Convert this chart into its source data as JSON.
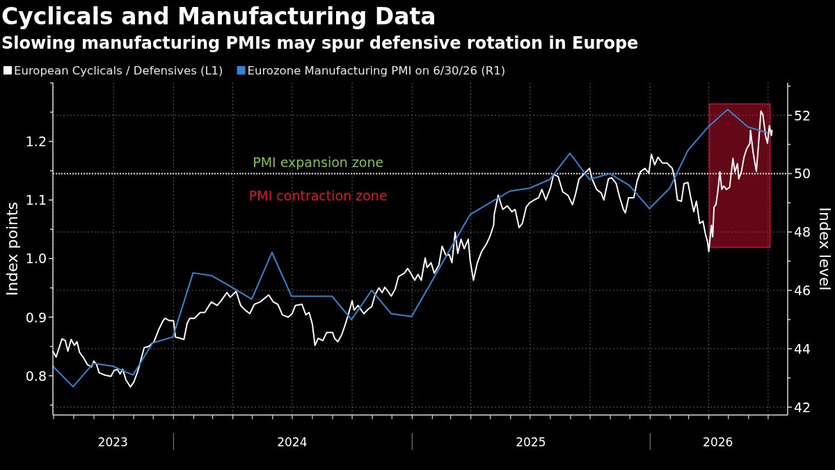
{
  "chart_data": {
    "type": "line",
    "title": "Cyclicals and Manufacturing Data",
    "subtitle": "Slowing manufacturing PMIs may spur defensive rotation in Europe",
    "ylabel": "Index points",
    "y2label": "Index level",
    "annotations": [
      "PMI expansion zone",
      "PMI contraction zone"
    ],
    "xlim": [
      "2023-06-30",
      "2026-07-31"
    ],
    "xticks": [
      {
        "value": "2023-07-01",
        "label": null
      },
      {
        "value": "2023-08-01",
        "label": null
      },
      {
        "value": "2023-09-01",
        "label": null
      },
      {
        "value": "2023-10-01",
        "label": null
      },
      {
        "value": "2023-11-01",
        "label": null
      },
      {
        "value": "2023-12-01",
        "label": null
      },
      {
        "value": "2024-01-01",
        "label": null
      },
      {
        "value": "2024-02-01",
        "label": null
      },
      {
        "value": "2024-03-01",
        "label": null
      },
      {
        "value": "2024-04-01",
        "label": null
      },
      {
        "value": "2024-05-01",
        "label": null
      },
      {
        "value": "2024-06-01",
        "label": null
      },
      {
        "value": "2024-07-01",
        "label": null
      },
      {
        "value": "2024-08-01",
        "label": null
      },
      {
        "value": "2024-09-01",
        "label": null
      },
      {
        "value": "2024-10-01",
        "label": null
      },
      {
        "value": "2024-11-01",
        "label": null
      },
      {
        "value": "2024-12-01",
        "label": null
      },
      {
        "value": "2025-01-01",
        "label": null
      },
      {
        "value": "2025-02-01",
        "label": null
      },
      {
        "value": "2025-03-01",
        "label": null
      },
      {
        "value": "2025-04-01",
        "label": null
      },
      {
        "value": "2025-05-01",
        "label": null
      },
      {
        "value": "2025-06-01",
        "label": null
      },
      {
        "value": "2025-07-01",
        "label": null
      },
      {
        "value": "2025-08-01",
        "label": null
      },
      {
        "value": "2025-09-01",
        "label": null
      },
      {
        "value": "2025-10-01",
        "label": null
      },
      {
        "value": "2025-11-01",
        "label": null
      },
      {
        "value": "2025-12-01",
        "label": null
      },
      {
        "value": "2026-01-01",
        "label": null
      },
      {
        "value": "2026-02-01",
        "label": null
      },
      {
        "value": "2026-03-01",
        "label": null
      },
      {
        "value": "2026-04-01",
        "label": null
      },
      {
        "value": "2026-05-01",
        "label": null
      },
      {
        "value": "2026-06-01",
        "label": null
      },
      {
        "value": "2026-07-01",
        "label": null
      },
      {
        "value": "2023-09-30",
        "label": "2023"
      },
      {
        "value": "2024-07-01",
        "label": "2024"
      },
      {
        "value": "2025-07-02",
        "label": "2025"
      },
      {
        "value": "2026-04-15",
        "label": "2026"
      }
    ],
    "ylim": [
      0.733,
      1.3
    ],
    "yticks": [
      {
        "value": 0.75,
        "label": null
      },
      0.8,
      {
        "value": 0.85,
        "label": null
      },
      0.9,
      {
        "value": 0.95,
        "label": null
      },
      {
        "value": 1,
        "label": "1.0"
      },
      {
        "value": 1.05,
        "label": null
      },
      1.1,
      {
        "value": 1.15,
        "label": null
      },
      1.2,
      {
        "value": 1.25,
        "label": null
      },
      {
        "value": 1.3,
        "label": null
      }
    ],
    "y2lim": [
      41.73,
      53.11
    ],
    "y2ticks": [
      42,
      {
        "value": 43,
        "label": null
      },
      44,
      {
        "value": 45,
        "label": null
      },
      46,
      {
        "value": 47,
        "label": null
      },
      48,
      {
        "value": 49,
        "label": null
      },
      50,
      {
        "value": 51,
        "label": null
      },
      52,
      {
        "value": 53,
        "label": null
      }
    ],
    "grid": true,
    "legend": "top left",
    "ref_lines": [
      {
        "axis": "y2",
        "value": 50,
        "color": "#c8c8c8",
        "line_style": "dotted"
      }
    ],
    "bands": [
      {
        "axis": "x",
        "from": "2026-04-02",
        "to": "2026-07-04",
        "color": "#c8102e"
      }
    ],
    "series": [
      {
        "name": "European Cyclicals / Defensives (L1)",
        "color": "#ffffff",
        "x": [
          "2023-06-30",
          "2023-07-05",
          "2023-07-09",
          "2023-07-14",
          "2023-07-19",
          "2023-07-23",
          "2023-07-28",
          "2023-08-02",
          "2023-08-06",
          "2023-08-10",
          "2023-08-17",
          "2023-08-22",
          "2023-08-28",
          "2023-09-01",
          "2023-09-05",
          "2023-09-09",
          "2023-09-18",
          "2023-09-27",
          "2023-10-02",
          "2023-10-07",
          "2023-10-11",
          "2023-10-15",
          "2023-10-20",
          "2023-10-27",
          "2023-11-01",
          "2023-11-07",
          "2023-11-12",
          "2023-11-17",
          "2023-11-24",
          "2023-12-02",
          "2023-12-09",
          "2023-12-16",
          "2023-12-19",
          "2023-12-26",
          "2024-01-01",
          "2024-01-04",
          "2024-01-11",
          "2024-01-17",
          "2024-01-22",
          "2024-01-26",
          "2024-02-02",
          "2024-02-11",
          "2024-02-18",
          "2024-02-28",
          "2024-03-08",
          "2024-03-14",
          "2024-03-23",
          "2024-03-28",
          "2024-04-06",
          "2024-04-13",
          "2024-04-20",
          "2024-04-27",
          "2024-05-04",
          "2024-05-13",
          "2024-05-26",
          "2024-06-02",
          "2024-06-09",
          "2024-06-16",
          "2024-06-25",
          "2024-07-01",
          "2024-07-06",
          "2024-07-16",
          "2024-07-22",
          "2024-07-27",
          "2024-08-01",
          "2024-08-05",
          "2024-08-10",
          "2024-08-17",
          "2024-08-23",
          "2024-09-01",
          "2024-09-04",
          "2024-09-09",
          "2024-09-15",
          "2024-09-20",
          "2024-09-25",
          "2024-10-01",
          "2024-10-04",
          "2024-10-10",
          "2024-10-19",
          "2024-10-26",
          "2024-10-31",
          "2024-11-05",
          "2024-11-11",
          "2024-11-16",
          "2024-11-20",
          "2024-11-25",
          "2024-11-30",
          "2024-12-06",
          "2024-12-11",
          "2024-12-20",
          "2024-12-25",
          "2024-12-30",
          "2025-01-05",
          "2025-01-10",
          "2025-01-15",
          "2025-01-21",
          "2025-01-24",
          "2025-01-30",
          "2025-02-04",
          "2025-02-11",
          "2025-02-16",
          "2025-02-22",
          "2025-02-27",
          "2025-03-03",
          "2025-03-08",
          "2025-03-12",
          "2025-03-17",
          "2025-03-22",
          "2025-03-28",
          "2025-03-31",
          "2025-04-05",
          "2025-04-11",
          "2025-04-18",
          "2025-04-25",
          "2025-04-30",
          "2025-05-06",
          "2025-05-07",
          "2025-05-13",
          "2025-05-20",
          "2025-05-27",
          "2025-06-03",
          "2025-06-08",
          "2025-06-14",
          "2025-06-19",
          "2025-06-25",
          "2025-06-30",
          "2025-07-07",
          "2025-07-14",
          "2025-07-19",
          "2025-07-25",
          "2025-08-01",
          "2025-08-06",
          "2025-08-13",
          "2025-08-20",
          "2025-08-28",
          "2025-09-04",
          "2025-09-09",
          "2025-09-14",
          "2025-09-23",
          "2025-09-30",
          "2025-10-04",
          "2025-10-11",
          "2025-10-18",
          "2025-10-22",
          "2025-10-29",
          "2025-11-03",
          "2025-11-10",
          "2025-11-15",
          "2025-11-21",
          "2025-11-24",
          "2025-11-29",
          "2025-12-07",
          "2025-12-12",
          "2025-12-17",
          "2025-12-24",
          "2025-12-30",
          "2026-01-03",
          "2026-01-08",
          "2026-01-13",
          "2026-01-20",
          "2026-01-27",
          "2026-02-04",
          "2026-02-08",
          "2026-02-12",
          "2026-02-18",
          "2026-02-22",
          "2026-02-28",
          "2026-03-04",
          "2026-03-09",
          "2026-03-13",
          "2026-03-18",
          "2026-03-23",
          "2026-03-27",
          "2026-03-30",
          "2026-04-01",
          "2026-04-05",
          "2026-04-07",
          "2026-04-09",
          "2026-04-12",
          "2026-04-15",
          "2026-04-18",
          "2026-04-21",
          "2026-04-24",
          "2026-04-28",
          "2026-05-03",
          "2026-05-08",
          "2026-05-11",
          "2026-05-15",
          "2026-05-17",
          "2026-05-21",
          "2026-05-25",
          "2026-05-29",
          "2026-06-03",
          "2026-06-04",
          "2026-06-08",
          "2026-06-13",
          "2026-06-16",
          "2026-06-20",
          "2026-06-23",
          "2026-06-27",
          "2026-06-30",
          "2026-07-03",
          "2026-07-06",
          "2026-07-07"
        ],
        "values": [
          0.842,
          0.832,
          0.846,
          0.863,
          0.86,
          0.842,
          0.862,
          0.852,
          0.858,
          0.84,
          0.829,
          0.819,
          0.815,
          0.825,
          0.819,
          0.805,
          0.801,
          0.799,
          0.809,
          0.811,
          0.803,
          0.811,
          0.793,
          0.781,
          0.789,
          0.807,
          0.827,
          0.848,
          0.85,
          0.858,
          0.878,
          0.894,
          0.898,
          0.894,
          0.894,
          0.866,
          0.864,
          0.862,
          0.89,
          0.898,
          0.898,
          0.908,
          0.908,
          0.926,
          0.92,
          0.928,
          0.942,
          0.934,
          0.944,
          0.92,
          0.912,
          0.906,
          0.922,
          0.926,
          0.938,
          0.926,
          0.922,
          0.904,
          0.9,
          0.906,
          0.92,
          0.922,
          0.904,
          0.908,
          0.888,
          0.852,
          0.864,
          0.86,
          0.874,
          0.874,
          0.864,
          0.858,
          0.87,
          0.886,
          0.904,
          0.928,
          0.912,
          0.92,
          0.906,
          0.914,
          0.918,
          0.938,
          0.95,
          0.942,
          0.951,
          0.944,
          0.936,
          0.948,
          0.969,
          0.975,
          0.983,
          0.975,
          0.963,
          0.973,
          0.963,
          1.001,
          0.985,
          0.993,
          0.975,
          0.989,
          1.021,
          1.005,
          1.007,
          0.993,
          1.045,
          1.009,
          1.033,
          1.017,
          1.033,
          0.997,
          0.963,
          0.993,
          1.013,
          1.025,
          1.037,
          1.057,
          1.076,
          1.108,
          1.084,
          1.09,
          1.08,
          1.084,
          1.053,
          1.06,
          1.088,
          1.095,
          1.1,
          1.104,
          1.118,
          1.1,
          1.12,
          1.144,
          1.14,
          1.114,
          1.108,
          1.092,
          1.112,
          1.136,
          1.146,
          1.154,
          1.136,
          1.118,
          1.112,
          1.1,
          1.136,
          1.138,
          1.128,
          1.106,
          1.084,
          1.078,
          1.104,
          1.104,
          1.132,
          1.148,
          1.154,
          1.146,
          1.178,
          1.16,
          1.173,
          1.163,
          1.163,
          1.154,
          1.134,
          1.1,
          1.098,
          1.128,
          1.13,
          1.106,
          1.08,
          1.098,
          1.06,
          1.064,
          1.041,
          1.029,
          1.012,
          1.057,
          1.037,
          1.088,
          1.092,
          1.116,
          1.148,
          1.118,
          1.124,
          1.118,
          1.122,
          1.171,
          1.148,
          1.162,
          1.136,
          1.148,
          1.173,
          1.187,
          1.197,
          1.219,
          1.181,
          1.149,
          1.191,
          1.252,
          1.246,
          1.21,
          1.197,
          1.227,
          1.21,
          1.219
        ]
      },
      {
        "name": "Eurozone Manufacturing PMI on 6/30/26 (R1)",
        "color": "#2f86d9",
        "axis": "y2",
        "x": [
          "2023-06-30",
          "2023-07-31",
          "2023-08-31",
          "2023-09-30",
          "2023-10-31",
          "2023-11-30",
          "2023-12-31",
          "2024-01-31",
          "2024-02-29",
          "2024-03-31",
          "2024-04-30",
          "2024-05-31",
          "2024-06-30",
          "2024-07-31",
          "2024-08-31",
          "2024-09-30",
          "2024-10-31",
          "2024-11-30",
          "2024-12-31",
          "2025-01-31",
          "2025-02-28",
          "2025-03-31",
          "2025-04-30",
          "2025-05-31",
          "2025-06-30",
          "2025-07-31",
          "2025-08-31",
          "2025-09-30",
          "2025-10-31",
          "2025-11-30",
          "2025-12-31",
          "2026-01-31",
          "2026-02-28",
          "2026-03-31",
          "2026-04-30",
          "2026-05-31",
          "2026-06-30"
        ],
        "values": [
          43.4,
          42.7,
          43.5,
          43.4,
          43.1,
          44.2,
          44.4,
          46.6,
          46.5,
          46.1,
          45.7,
          47.3,
          45.8,
          45.8,
          45.8,
          45.0,
          46.0,
          45.2,
          45.1,
          46.3,
          47.4,
          48.6,
          49.0,
          49.4,
          49.5,
          49.8,
          50.7,
          49.8,
          50.0,
          49.6,
          48.8,
          49.5,
          50.8,
          51.6,
          52.2,
          51.6,
          51.4
        ]
      }
    ]
  }
}
